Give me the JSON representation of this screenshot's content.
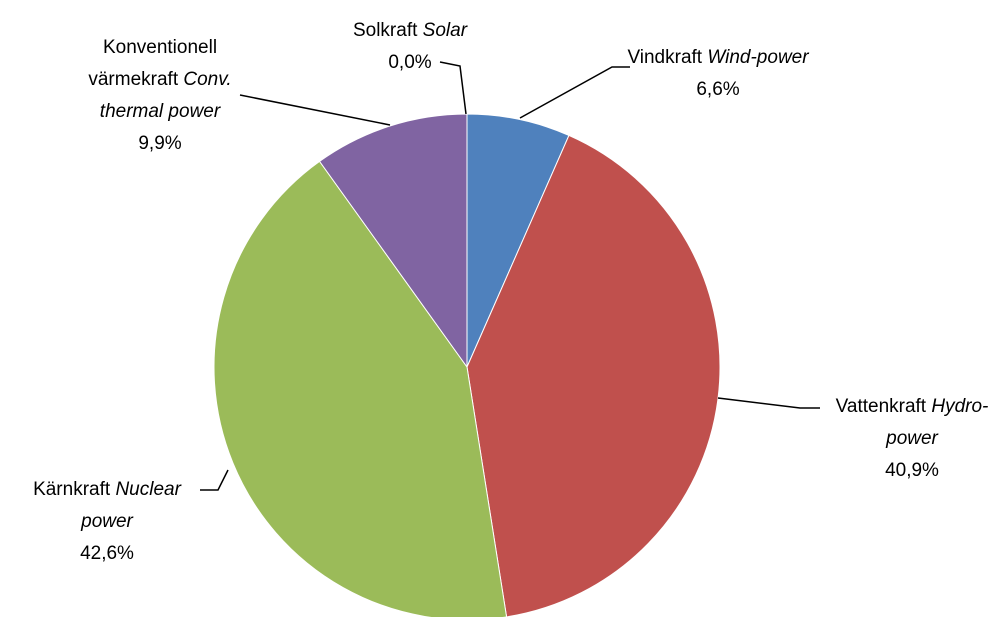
{
  "chart_data": {
    "type": "pie",
    "categories": [
      "Vindkraft",
      "Vattenkraft",
      "Kärnkraft",
      "Konventionell värmekraft",
      "Solkraft"
    ],
    "categories_en": [
      "Wind-power",
      "Hydro-power",
      "Nuclear power",
      "Conv. thermal power",
      "Solar"
    ],
    "values": [
      6.6,
      40.9,
      42.6,
      9.9,
      0.0
    ],
    "value_labels": [
      "6,6%",
      "40,9%",
      "42,6%",
      "9,9%",
      "0,0%"
    ],
    "colors": [
      "#4f81bd",
      "#c0504d",
      "#9bbb59",
      "#8064a2",
      "#f79646"
    ]
  }
}
